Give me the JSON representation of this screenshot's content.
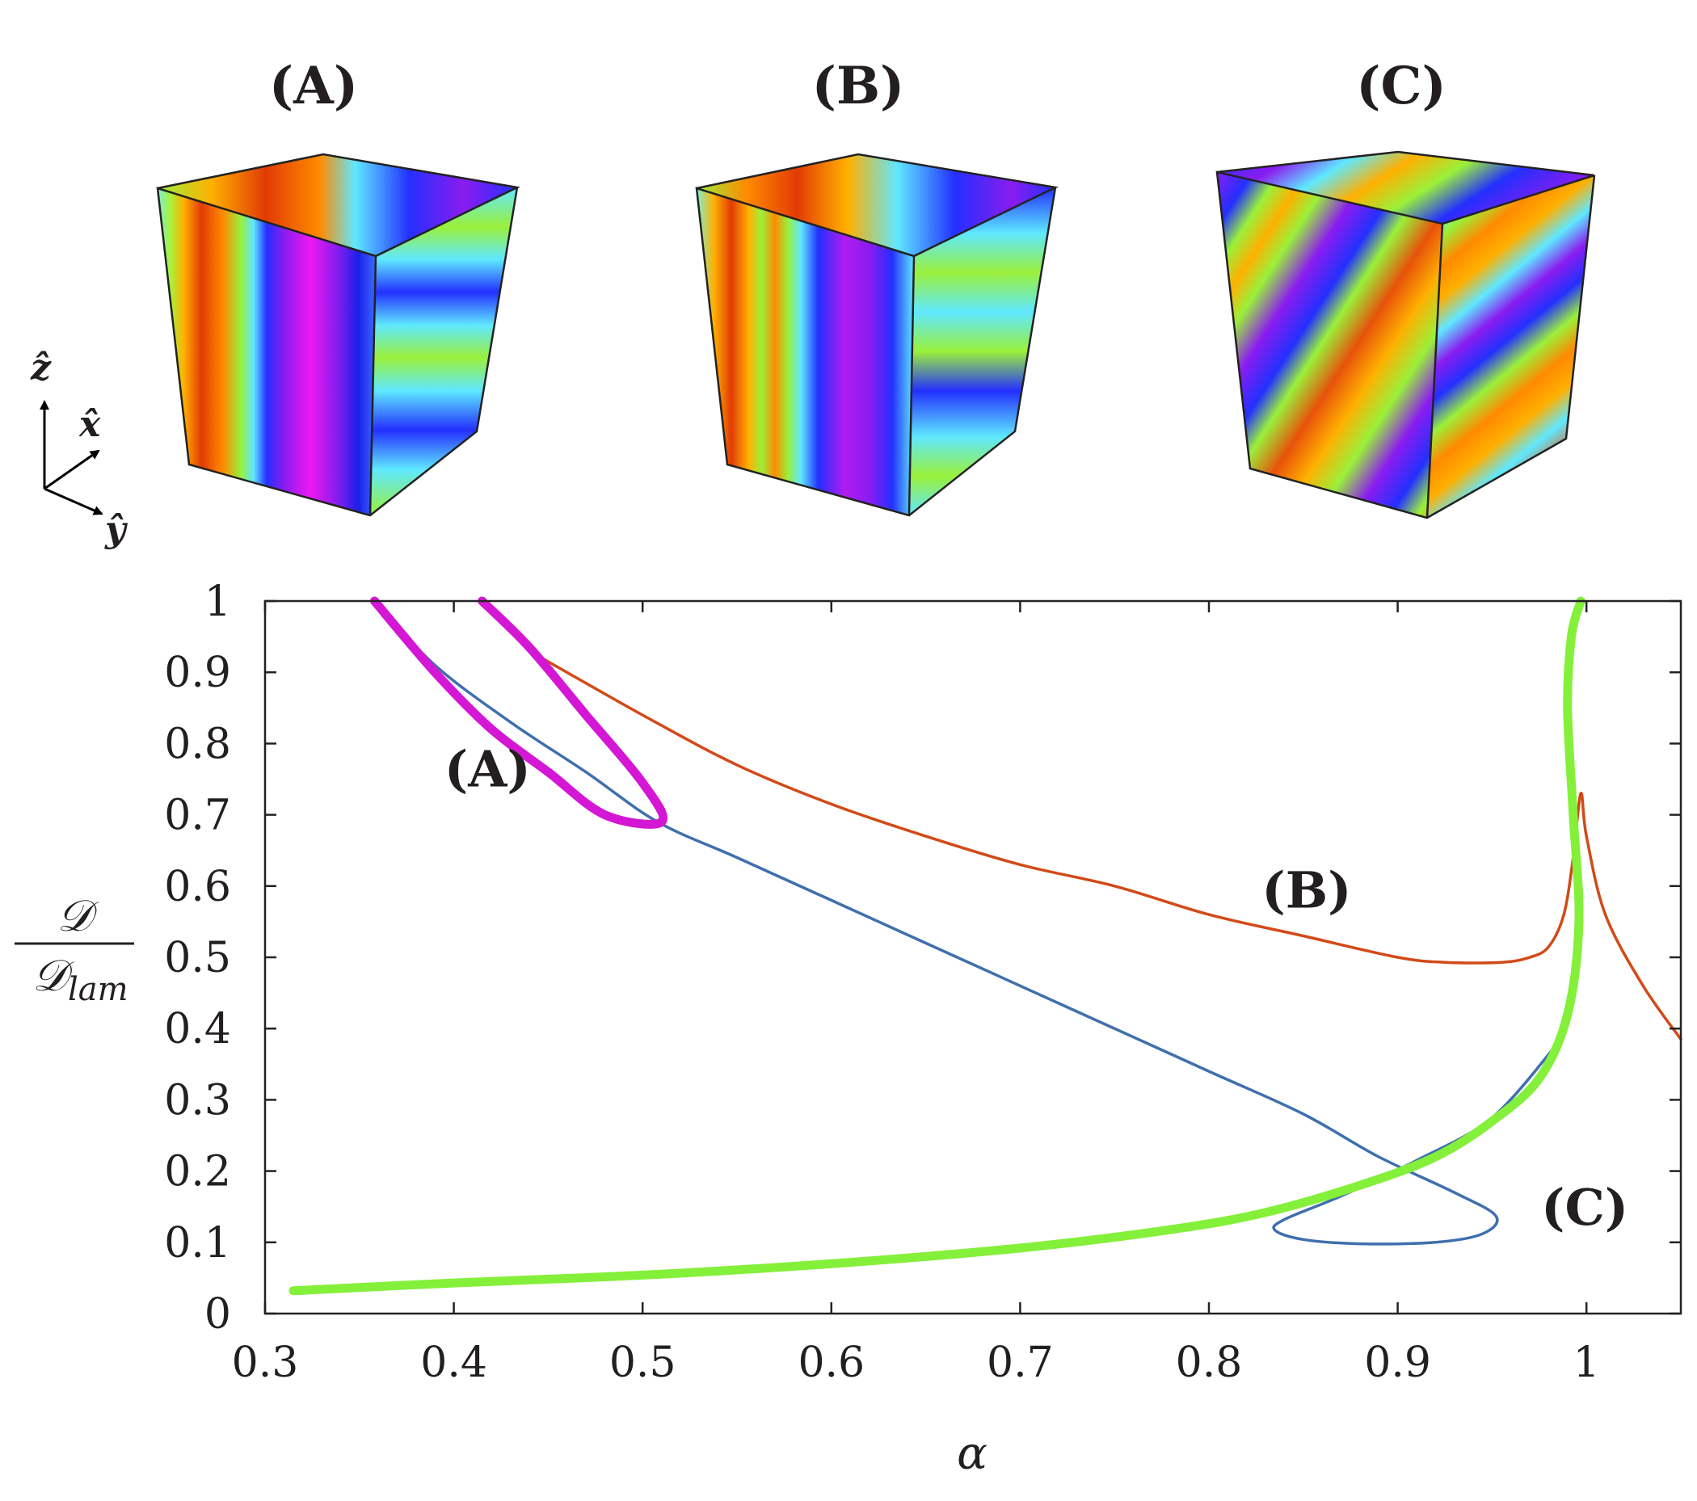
{
  "panels": [
    {
      "title": "(A)"
    },
    {
      "title": "(B)"
    },
    {
      "title": "(C)"
    }
  ],
  "axes_triad": {
    "z": "ẑ",
    "x": "x̂",
    "y": "ŷ"
  },
  "chart_data": {
    "type": "line",
    "xlabel": "α",
    "ylabel": {
      "numerator": "𝒟",
      "denominator": "𝒟",
      "subscript": "lam"
    },
    "xlim": [
      0.3,
      1.05
    ],
    "ylim": [
      0,
      1
    ],
    "xticks": [
      0.3,
      0.4,
      0.5,
      0.6,
      0.7,
      0.8,
      0.9,
      1
    ],
    "xtick_labels": [
      "0.3",
      "0.4",
      "0.5",
      "0.6",
      "0.7",
      "0.8",
      "0.9",
      "1"
    ],
    "yticks": [
      0,
      0.1,
      0.2,
      0.3,
      0.4,
      0.5,
      0.6,
      0.7,
      0.8,
      0.9,
      1
    ],
    "ytick_labels": [
      "0",
      "0.1",
      "0.2",
      "0.3",
      "0.4",
      "0.5",
      "0.6",
      "0.7",
      "0.8",
      "0.9",
      "1"
    ],
    "grid": false,
    "series": [
      {
        "color": "#3f6fad",
        "width": "thin",
        "points": [
          [
            0.358,
            1.0
          ],
          [
            0.39,
            0.91
          ],
          [
            0.43,
            0.83
          ],
          [
            0.47,
            0.76
          ],
          [
            0.508,
            0.69
          ],
          [
            0.55,
            0.64
          ],
          [
            0.6,
            0.58
          ],
          [
            0.65,
            0.52
          ],
          [
            0.7,
            0.46
          ],
          [
            0.75,
            0.4
          ],
          [
            0.8,
            0.34
          ],
          [
            0.85,
            0.28
          ],
          [
            0.89,
            0.22
          ],
          [
            0.93,
            0.17
          ],
          [
            0.952,
            0.137
          ],
          [
            0.945,
            0.112
          ],
          [
            0.92,
            0.1
          ],
          [
            0.88,
            0.098
          ],
          [
            0.85,
            0.104
          ],
          [
            0.835,
            0.117
          ],
          [
            0.84,
            0.132
          ],
          [
            0.87,
            0.165
          ],
          [
            0.91,
            0.215
          ],
          [
            0.95,
            0.275
          ],
          [
            0.985,
            0.38
          ]
        ]
      },
      {
        "color": "#d24a18",
        "width": "thin",
        "points": [
          [
            0.44,
            0.93
          ],
          [
            0.5,
            0.84
          ],
          [
            0.55,
            0.77
          ],
          [
            0.6,
            0.715
          ],
          [
            0.65,
            0.67
          ],
          [
            0.7,
            0.63
          ],
          [
            0.75,
            0.6
          ],
          [
            0.8,
            0.56
          ],
          [
            0.85,
            0.53
          ],
          [
            0.9,
            0.5
          ],
          [
            0.925,
            0.493
          ],
          [
            0.955,
            0.493
          ],
          [
            0.97,
            0.5
          ],
          [
            0.98,
            0.515
          ],
          [
            0.988,
            0.56
          ],
          [
            0.993,
            0.64
          ],
          [
            0.997,
            0.73
          ],
          [
            1.0,
            0.67
          ],
          [
            1.01,
            0.56
          ],
          [
            1.03,
            0.46
          ],
          [
            1.05,
            0.385
          ]
        ]
      },
      {
        "color": "#d417d4",
        "width": "thick",
        "points": [
          [
            0.415,
            1.0
          ],
          [
            0.44,
            0.935
          ],
          [
            0.47,
            0.84
          ],
          [
            0.5,
            0.745
          ],
          [
            0.51,
            0.69
          ],
          [
            0.48,
            0.7
          ],
          [
            0.45,
            0.76
          ],
          [
            0.42,
            0.82
          ],
          [
            0.39,
            0.9
          ],
          [
            0.358,
            1.0
          ]
        ]
      },
      {
        "color": "#84f03a",
        "width": "thick",
        "points": [
          [
            0.315,
            0.032
          ],
          [
            0.4,
            0.043
          ],
          [
            0.5,
            0.054
          ],
          [
            0.6,
            0.07
          ],
          [
            0.7,
            0.092
          ],
          [
            0.78,
            0.118
          ],
          [
            0.83,
            0.142
          ],
          [
            0.88,
            0.18
          ],
          [
            0.92,
            0.22
          ],
          [
            0.95,
            0.27
          ],
          [
            0.975,
            0.33
          ],
          [
            0.99,
            0.42
          ],
          [
            0.996,
            0.55
          ],
          [
            0.993,
            0.7
          ],
          [
            0.99,
            0.85
          ],
          [
            0.992,
            0.95
          ],
          [
            0.997,
            1.0
          ]
        ]
      }
    ],
    "annotations": [
      {
        "text": "(A)",
        "x": 0.395,
        "y": 0.74
      },
      {
        "text": "(B)",
        "x": 0.828,
        "y": 0.57
      },
      {
        "text": "(C)",
        "x": 0.976,
        "y": 0.125
      }
    ]
  }
}
